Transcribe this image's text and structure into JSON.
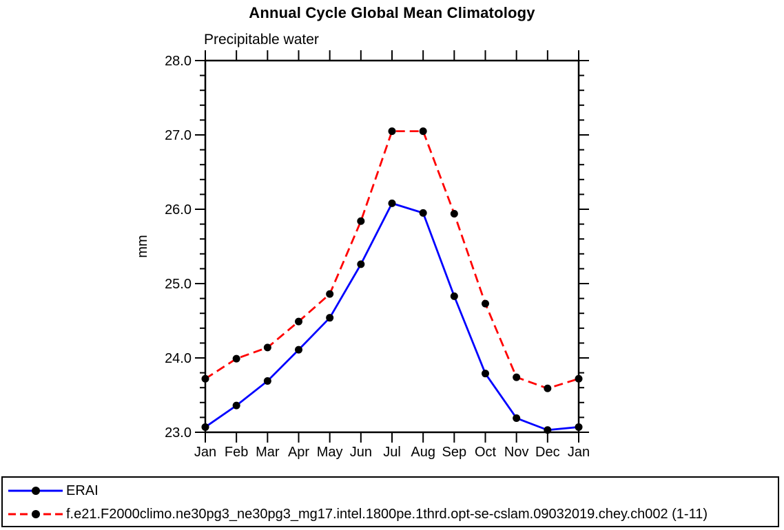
{
  "page": {
    "window_title": "Annual Cycle Global Mean Climatology"
  },
  "colors": {
    "axis": "#000000",
    "marker": "#000000",
    "erai_line": "#0000ff",
    "model_line": "#ff0000",
    "background": "#ffffff"
  },
  "chart_data": {
    "type": "line",
    "title": "Annual Cycle Global Mean Climatology",
    "subtitle": "Precipitable water",
    "xlabel": "",
    "ylabel": "mm",
    "ylim": [
      23.0,
      28.0
    ],
    "ytick_interval": 1.0,
    "yminor_interval": 0.2,
    "ytick_labels": [
      "23.0",
      "24.0",
      "25.0",
      "26.0",
      "27.0",
      "28.0"
    ],
    "categories": [
      "Jan",
      "Feb",
      "Mar",
      "Apr",
      "May",
      "Jun",
      "Jul",
      "Aug",
      "Sep",
      "Oct",
      "Nov",
      "Dec",
      "Jan"
    ],
    "grid": false,
    "legend_position": "bottom",
    "series": [
      {
        "name": "ERAI",
        "color": "#0000ff",
        "line_style": "solid",
        "marker": "filled-circle",
        "marker_color": "#000000",
        "values": [
          23.07,
          23.36,
          23.69,
          24.11,
          24.54,
          25.26,
          26.08,
          25.95,
          24.83,
          23.79,
          23.19,
          23.03,
          23.07
        ]
      },
      {
        "name": "f.e21.F2000climo.ne30pg3_ne30pg3_mg17.intel.1800pe.1thrd.opt-se-cslam.09032019.chey.ch002 (1-11)",
        "color": "#ff0000",
        "line_style": "dashed",
        "marker": "filled-circle",
        "marker_color": "#000000",
        "values": [
          23.72,
          23.99,
          24.14,
          24.49,
          24.86,
          25.84,
          27.05,
          27.05,
          25.94,
          24.73,
          23.74,
          23.59,
          23.72
        ]
      }
    ]
  }
}
